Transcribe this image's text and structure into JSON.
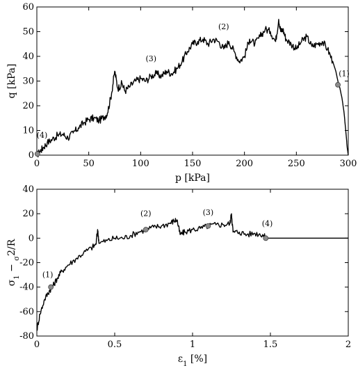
{
  "chart_data": [
    {
      "type": "line",
      "xlabel": "p [kPa]",
      "ylabel": "q [kPa]",
      "xlim": [
        0,
        300
      ],
      "ylim": [
        0,
        60
      ],
      "xticks": [
        0,
        50,
        100,
        150,
        200,
        250,
        300
      ],
      "yticks": [
        0,
        10,
        20,
        30,
        40,
        50,
        60
      ],
      "grid": false,
      "series": [
        {
          "x": [
            0,
            3,
            6,
            10,
            15,
            20,
            25,
            30,
            35,
            40,
            45,
            50,
            55,
            60,
            65,
            68,
            72,
            75,
            78,
            82,
            85,
            90,
            95,
            100,
            105,
            110,
            115,
            120,
            125,
            130,
            135,
            140,
            145,
            150,
            155,
            160,
            165,
            170,
            175,
            180,
            185,
            190,
            195,
            200,
            205,
            210,
            215,
            220,
            225,
            230,
            233,
            235,
            237,
            240,
            245,
            250,
            255,
            260,
            265,
            270,
            275,
            280,
            285,
            288,
            290,
            292,
            294,
            296,
            298,
            299,
            300
          ],
          "y": [
            0,
            1.5,
            3,
            5,
            6.5,
            8,
            8.5,
            7,
            9,
            11,
            13,
            14.5,
            15,
            14,
            15.5,
            17,
            25,
            34,
            27,
            29,
            26,
            28,
            30,
            31,
            30,
            32,
            33,
            32,
            34,
            33,
            35,
            38,
            42,
            45,
            46,
            47,
            45,
            47,
            46,
            43,
            46,
            42,
            38,
            40,
            47,
            45,
            48,
            51,
            50,
            46,
            55,
            50,
            51,
            47,
            45,
            43,
            46,
            48,
            44,
            45,
            46,
            43,
            38,
            34,
            30,
            27,
            23,
            17,
            8,
            3,
            0
          ]
        }
      ],
      "highlight_points": [
        {
          "x": 290,
          "y": 28.5
        },
        {
          "x": 0.5,
          "y": 0.5
        }
      ],
      "annotations": [
        {
          "text": "(1)",
          "x": 296,
          "y": 32
        },
        {
          "text": "(2)",
          "x": 180,
          "y": 51
        },
        {
          "text": "(3)",
          "x": 110,
          "y": 38
        },
        {
          "text": "(4)",
          "x": 5,
          "y": 7
        }
      ]
    },
    {
      "type": "line",
      "xlabel": "ε1 [%]",
      "ylabel": "σ1 − σ2/R",
      "xlim": [
        0,
        2
      ],
      "ylim": [
        -80,
        40
      ],
      "xticks": [
        0,
        0.5,
        1,
        1.5,
        2
      ],
      "yticks": [
        -80,
        -60,
        -40,
        -20,
        0,
        20,
        40
      ],
      "grid": false,
      "series": [
        {
          "x": [
            0,
            0.02,
            0.05,
            0.08,
            0.1,
            0.13,
            0.16,
            0.2,
            0.25,
            0.3,
            0.35,
            0.38,
            0.39,
            0.4,
            0.45,
            0.5,
            0.55,
            0.6,
            0.65,
            0.7,
            0.75,
            0.8,
            0.85,
            0.88,
            0.9,
            0.92,
            0.95,
            1.0,
            1.05,
            1.1,
            1.15,
            1.2,
            1.24,
            1.25,
            1.26,
            1.3,
            1.35,
            1.4,
            1.45,
            1.47,
            1.5,
            1.6,
            1.7,
            1.8,
            1.9,
            2.0
          ],
          "y": [
            -75,
            -62,
            -50,
            -43,
            -40,
            -33,
            -27,
            -22,
            -17,
            -12,
            -8,
            -5,
            7,
            -4,
            -2,
            0,
            0,
            2,
            5,
            7,
            9,
            10,
            12,
            14,
            15,
            3,
            5,
            7,
            8,
            10,
            11,
            11,
            12,
            20,
            5,
            5,
            3,
            4,
            3,
            0,
            0,
            0,
            0,
            0,
            0,
            0
          ]
        }
      ],
      "highlight_points": [
        {
          "x": 0.09,
          "y": -40
        },
        {
          "x": 0.7,
          "y": 7
        },
        {
          "x": 1.1,
          "y": 10
        },
        {
          "x": 1.47,
          "y": 0
        }
      ],
      "annotations": [
        {
          "text": "(1)",
          "x": 0.07,
          "y": -32
        },
        {
          "text": "(2)",
          "x": 0.7,
          "y": 18
        },
        {
          "text": "(3)",
          "x": 1.1,
          "y": 19
        },
        {
          "text": "(4)",
          "x": 1.48,
          "y": 10
        }
      ]
    }
  ]
}
